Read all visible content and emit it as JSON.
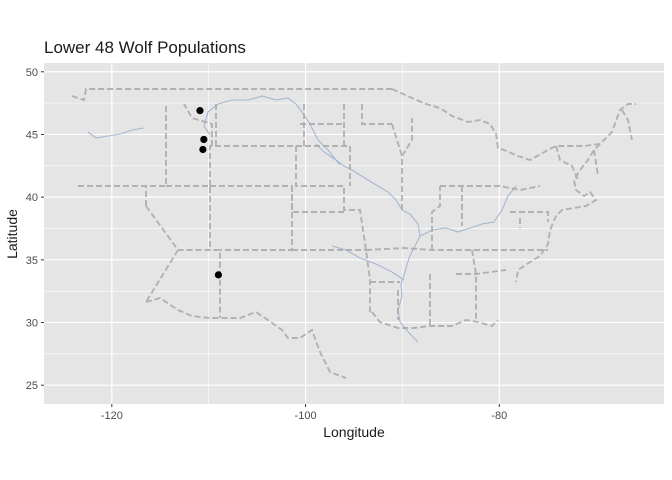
{
  "chart_data": {
    "type": "scatter",
    "title": "Lower 48 Wolf Populations",
    "xlabel": "Longitude",
    "ylabel": "Latitude",
    "xlim": [
      -127,
      -63
    ],
    "ylim": [
      23.5,
      50.7
    ],
    "xticks": [
      -120,
      -100,
      -80
    ],
    "yticks": [
      25,
      30,
      35,
      40,
      45,
      50
    ],
    "grid": true,
    "legend": "none",
    "background": "basemap of US state boundaries (dashed grey lines) and rivers (light blue lines)",
    "points": [
      {
        "x": -110.9,
        "y": 46.9
      },
      {
        "x": -110.5,
        "y": 44.6
      },
      {
        "x": -110.6,
        "y": 43.8
      },
      {
        "x": -109.0,
        "y": 33.8
      }
    ],
    "colors": {
      "panel": "#e5e5e5",
      "grid": "#ffffff",
      "point": "#000000",
      "boundary": "#a9a9a9",
      "river": "#9fb3cf"
    }
  }
}
